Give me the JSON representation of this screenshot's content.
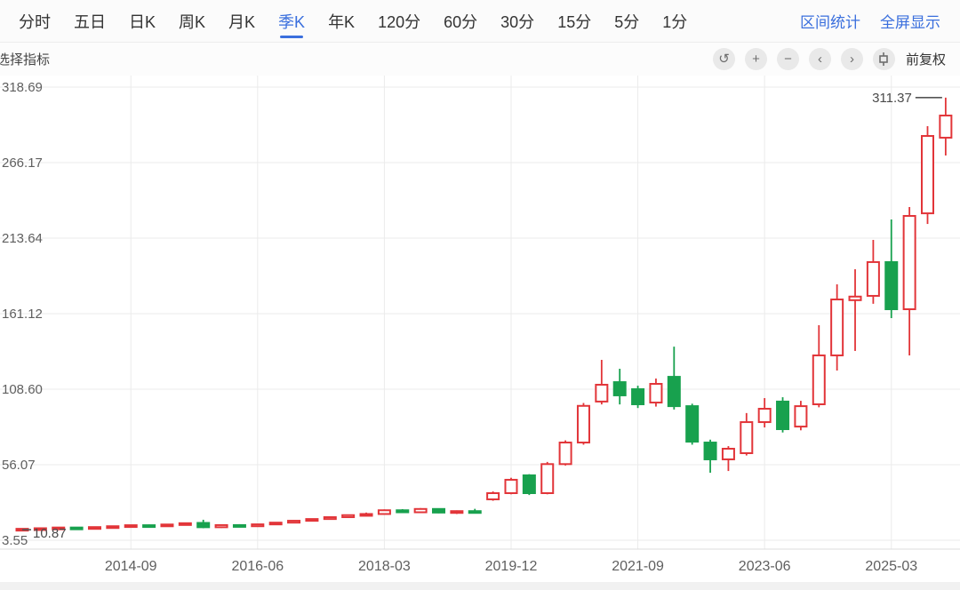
{
  "toolbar": {
    "tabs": [
      "分时",
      "五日",
      "日K",
      "周K",
      "月K",
      "季K",
      "年K",
      "120分",
      "60分",
      "30分",
      "15分",
      "5分",
      "1分"
    ],
    "active_tab": "季K",
    "links": [
      "区间统计",
      "全屏显示"
    ],
    "accent_color": "#3a6fdd"
  },
  "subbar": {
    "indicator_label": "选择指标",
    "adjust_label": "前复权",
    "icons": [
      {
        "name": "undo-icon",
        "glyph": "↺"
      },
      {
        "name": "zoom-in-icon",
        "glyph": "+"
      },
      {
        "name": "zoom-out-icon",
        "glyph": "−"
      },
      {
        "name": "pan-left-icon",
        "glyph": "‹"
      },
      {
        "name": "pan-right-icon",
        "glyph": "›"
      },
      {
        "name": "kline-style-icon",
        "glyph": ""
      }
    ]
  },
  "chart_data": {
    "type": "candlestick",
    "interval": "quarterly",
    "up_color": "#e23539",
    "down_color": "#18a14e",
    "grid_color": "#ebebeb",
    "axis_text_color": "#5f5f5f",
    "marker_text_color": "#4a4a4a",
    "y_ticks": [
      318.69,
      266.17,
      213.64,
      161.12,
      108.6,
      56.07,
      3.55
    ],
    "y_axis_min": 3.55,
    "x_tick_indices": [
      6,
      13,
      20,
      27,
      34,
      41,
      48
    ],
    "x_tick_labels": [
      "2014-09",
      "2016-06",
      "2018-03",
      "2019-12",
      "2021-09",
      "2023-06",
      "2025-03"
    ],
    "high_marker": {
      "label": "311.37",
      "candle_index": 51
    },
    "low_marker": {
      "label": "10.87",
      "candle_index": 0
    },
    "candles": [
      {
        "t": "2013-03",
        "o": 11.2,
        "h": 11.7,
        "l": 10.87,
        "c": 11.5
      },
      {
        "t": "2013-06",
        "o": 11.5,
        "h": 12.1,
        "l": 11.1,
        "c": 11.9
      },
      {
        "t": "2013-09",
        "o": 11.9,
        "h": 12.6,
        "l": 11.4,
        "c": 12.4
      },
      {
        "t": "2013-12",
        "o": 12.4,
        "h": 12.8,
        "l": 11.8,
        "c": 12.1
      },
      {
        "t": "2014-03",
        "o": 12.1,
        "h": 12.9,
        "l": 11.7,
        "c": 12.7
      },
      {
        "t": "2014-06",
        "o": 12.7,
        "h": 13.5,
        "l": 12.3,
        "c": 13.3
      },
      {
        "t": "2014-09",
        "o": 13.3,
        "h": 14.2,
        "l": 12.9,
        "c": 14.0
      },
      {
        "t": "2014-12",
        "o": 14.0,
        "h": 14.5,
        "l": 13.2,
        "c": 13.5
      },
      {
        "t": "2015-03",
        "o": 13.5,
        "h": 14.8,
        "l": 13.1,
        "c": 14.5
      },
      {
        "t": "2015-06",
        "o": 14.5,
        "h": 15.7,
        "l": 14.1,
        "c": 15.4
      },
      {
        "t": "2015-09",
        "o": 15.6,
        "h": 17.8,
        "l": 11.9,
        "c": 12.6
      },
      {
        "t": "2015-12",
        "o": 12.6,
        "h": 14.4,
        "l": 12.1,
        "c": 14.1
      },
      {
        "t": "2016-03",
        "o": 14.1,
        "h": 14.7,
        "l": 12.9,
        "c": 13.3
      },
      {
        "t": "2016-06",
        "o": 13.3,
        "h": 14.9,
        "l": 12.8,
        "c": 14.6
      },
      {
        "t": "2016-09",
        "o": 14.6,
        "h": 16.1,
        "l": 14.2,
        "c": 15.8
      },
      {
        "t": "2016-12",
        "o": 15.8,
        "h": 17.5,
        "l": 15.4,
        "c": 17.1
      },
      {
        "t": "2017-03",
        "o": 17.1,
        "h": 18.7,
        "l": 16.7,
        "c": 18.3
      },
      {
        "t": "2017-06",
        "o": 18.3,
        "h": 20.0,
        "l": 17.8,
        "c": 19.6
      },
      {
        "t": "2017-09",
        "o": 19.6,
        "h": 21.4,
        "l": 19.1,
        "c": 21.0
      },
      {
        "t": "2017-12",
        "o": 21.0,
        "h": 22.8,
        "l": 20.1,
        "c": 21.8
      },
      {
        "t": "2018-03",
        "o": 21.8,
        "h": 25.0,
        "l": 21.3,
        "c": 24.4
      },
      {
        "t": "2018-06",
        "o": 24.4,
        "h": 25.2,
        "l": 22.5,
        "c": 23.0
      },
      {
        "t": "2018-09",
        "o": 23.0,
        "h": 25.9,
        "l": 22.5,
        "c": 25.3
      },
      {
        "t": "2018-12",
        "o": 25.3,
        "h": 25.8,
        "l": 22.3,
        "c": 22.8
      },
      {
        "t": "2019-03",
        "o": 22.8,
        "h": 24.3,
        "l": 21.8,
        "c": 23.8
      },
      {
        "t": "2019-06",
        "o": 23.8,
        "h": 25.4,
        "l": 22.5,
        "c": 23.0
      },
      {
        "t": "2019-09",
        "o": 32.0,
        "h": 37.5,
        "l": 31.0,
        "c": 36.3
      },
      {
        "t": "2019-12",
        "o": 36.3,
        "h": 47.0,
        "l": 35.5,
        "c": 45.6
      },
      {
        "t": "2020-03",
        "o": 48.7,
        "h": 49.5,
        "l": 35.0,
        "c": 36.3
      },
      {
        "t": "2020-06",
        "o": 36.3,
        "h": 58.0,
        "l": 35.5,
        "c": 56.5
      },
      {
        "t": "2020-09",
        "o": 56.5,
        "h": 73.0,
        "l": 55.5,
        "c": 71.5
      },
      {
        "t": "2020-12",
        "o": 71.5,
        "h": 99.0,
        "l": 70.0,
        "c": 97.0
      },
      {
        "t": "2021-03",
        "o": 100.0,
        "h": 129.0,
        "l": 98.0,
        "c": 111.7
      },
      {
        "t": "2021-06",
        "o": 113.5,
        "h": 122.8,
        "l": 98.0,
        "c": 104.3
      },
      {
        "t": "2021-09",
        "o": 108.6,
        "h": 111.0,
        "l": 95.5,
        "c": 98.1
      },
      {
        "t": "2021-12",
        "o": 99.3,
        "h": 116.0,
        "l": 96.5,
        "c": 112.3
      },
      {
        "t": "2022-03",
        "o": 117.2,
        "h": 138.2,
        "l": 94.5,
        "c": 96.8
      },
      {
        "t": "2022-06",
        "o": 96.8,
        "h": 98.5,
        "l": 70.0,
        "c": 72.1
      },
      {
        "t": "2022-09",
        "o": 71.5,
        "h": 73.5,
        "l": 50.5,
        "c": 59.8
      },
      {
        "t": "2022-12",
        "o": 59.8,
        "h": 69.0,
        "l": 51.7,
        "c": 67.2
      },
      {
        "t": "2023-03",
        "o": 64.1,
        "h": 92.0,
        "l": 62.5,
        "c": 85.7
      },
      {
        "t": "2023-06",
        "o": 85.7,
        "h": 102.4,
        "l": 82.0,
        "c": 95.0
      },
      {
        "t": "2023-09",
        "o": 100.0,
        "h": 103.0,
        "l": 78.5,
        "c": 80.8
      },
      {
        "t": "2023-12",
        "o": 82.6,
        "h": 100.5,
        "l": 80.0,
        "c": 96.8
      },
      {
        "t": "2024-03",
        "o": 98.1,
        "h": 153.1,
        "l": 96.0,
        "c": 132.1
      },
      {
        "t": "2024-06",
        "o": 132.1,
        "h": 181.5,
        "l": 121.6,
        "c": 171.0
      },
      {
        "t": "2024-09",
        "o": 170.5,
        "h": 192.0,
        "l": 135.2,
        "c": 173.0
      },
      {
        "t": "2024-12",
        "o": 173.5,
        "h": 212.4,
        "l": 168.0,
        "c": 197.0
      },
      {
        "t": "2025-03",
        "o": 197.0,
        "h": 226.6,
        "l": 158.0,
        "c": 164.2
      },
      {
        "t": "2025-06",
        "o": 164.2,
        "h": 235.3,
        "l": 132.1,
        "c": 229.1
      },
      {
        "t": "2025-09",
        "o": 230.9,
        "h": 291.5,
        "l": 223.5,
        "c": 284.7
      },
      {
        "t": "2025-12",
        "o": 283.5,
        "h": 311.37,
        "l": 271.1,
        "c": 298.9
      }
    ]
  }
}
